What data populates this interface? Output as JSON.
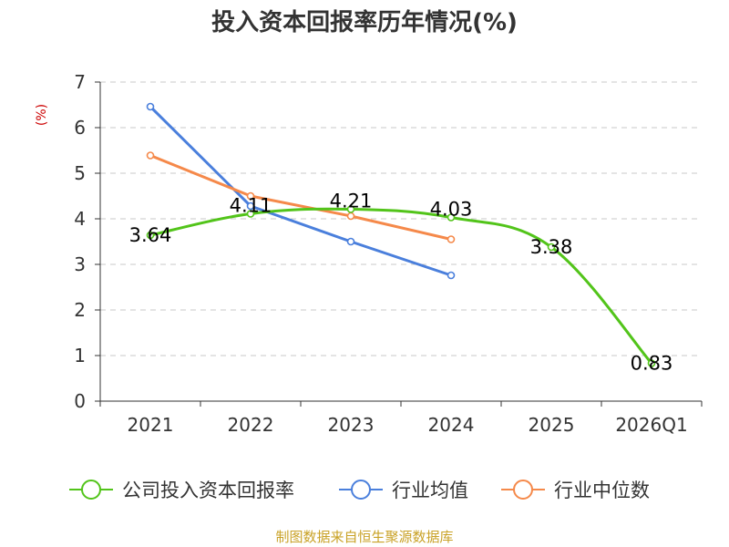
{
  "chart_data": {
    "type": "line",
    "title": "投入资本回报率历年情况(%)",
    "ylabel": "(%)",
    "xlabel": "",
    "categories": [
      "2021",
      "2022",
      "2023",
      "2024",
      "2025",
      "2026Q1"
    ],
    "ylim": [
      0,
      7
    ],
    "yticks": [
      0,
      1,
      2,
      3,
      4,
      5,
      6,
      7
    ],
    "grid": true,
    "legend": "bottom",
    "series": [
      {
        "name": "公司投入资本回报率",
        "color": "#52c41a",
        "values": [
          3.64,
          4.11,
          4.21,
          4.03,
          3.38,
          0.83
        ],
        "labels": [
          "3.64",
          "4.11",
          "4.21",
          "4.03",
          "3.38",
          "0.83"
        ]
      },
      {
        "name": "行业均值",
        "color": "#4a7fdc",
        "values": [
          6.46,
          4.28,
          3.5,
          2.76,
          null,
          null
        ]
      },
      {
        "name": "行业中位数",
        "color": "#f5894a",
        "values": [
          5.39,
          4.5,
          4.06,
          3.55,
          null,
          null
        ]
      }
    ]
  },
  "source": "制图数据来自恒生聚源数据库"
}
